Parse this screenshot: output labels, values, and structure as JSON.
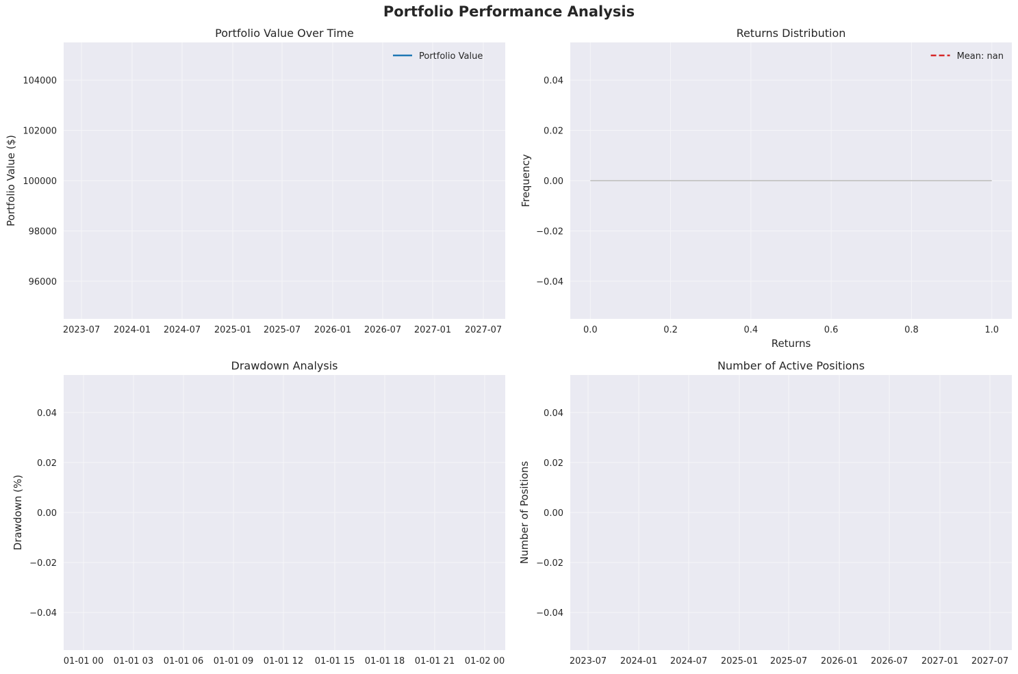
{
  "figure": {
    "title": "Portfolio Performance Analysis"
  },
  "chart_data": [
    {
      "id": "portfolio-value",
      "type": "line",
      "title": "Portfolio Value Over Time",
      "xlabel": "",
      "ylabel": "Portfolio Value ($)",
      "x_ticks": [
        "2023-07",
        "2024-01",
        "2024-07",
        "2025-01",
        "2025-07",
        "2026-01",
        "2026-07",
        "2027-01",
        "2027-07"
      ],
      "y_ticks": [
        "96000",
        "98000",
        "100000",
        "102000",
        "104000"
      ],
      "y_tick_values": [
        96000,
        98000,
        100000,
        102000,
        104000
      ],
      "ylim": [
        94500,
        105500
      ],
      "series": [
        {
          "name": "Portfolio Value",
          "x": [],
          "y": [],
          "color": "#1f77b4"
        }
      ],
      "legend": {
        "entries": [
          {
            "label": "Portfolio Value",
            "style": "solid",
            "color": "#1f77b4"
          }
        ],
        "position": "upper-right"
      },
      "grid": true
    },
    {
      "id": "returns-distribution",
      "type": "bar",
      "title": "Returns Distribution",
      "xlabel": "Returns",
      "ylabel": "Frequency",
      "x_ticks": [
        "0.0",
        "0.2",
        "0.4",
        "0.6",
        "0.8",
        "1.0"
      ],
      "x_tick_values": [
        0.0,
        0.2,
        0.4,
        0.6,
        0.8,
        1.0
      ],
      "y_ticks": [
        "0.04",
        "0.02",
        "0.00",
        "−0.02",
        "−0.04"
      ],
      "y_tick_values": [
        0.04,
        0.02,
        0.0,
        -0.02,
        -0.04
      ],
      "xlim": [
        -0.05,
        1.05
      ],
      "ylim": [
        -0.055,
        0.055
      ],
      "histogram": {
        "range": [
          0.0,
          1.0
        ],
        "value": 0.0,
        "color": "#c8c8c8"
      },
      "legend": {
        "entries": [
          {
            "label": "Mean: nan",
            "style": "dashed",
            "color": "#d62728"
          }
        ],
        "position": "upper-right"
      },
      "grid": true
    },
    {
      "id": "drawdown",
      "type": "area",
      "title": "Drawdown Analysis",
      "xlabel": "",
      "ylabel": "Drawdown (%)",
      "x_ticks": [
        "01-01 00",
        "01-01 03",
        "01-01 06",
        "01-01 09",
        "01-01 12",
        "01-01 15",
        "01-01 18",
        "01-01 21",
        "01-02 00"
      ],
      "y_ticks": [
        "0.04",
        "0.02",
        "0.00",
        "−0.02",
        "−0.04"
      ],
      "y_tick_values": [
        0.04,
        0.02,
        0.0,
        -0.02,
        -0.04
      ],
      "ylim": [
        -0.055,
        0.055
      ],
      "series": [],
      "grid": true
    },
    {
      "id": "active-positions",
      "type": "line",
      "title": "Number of Active Positions",
      "xlabel": "",
      "ylabel": "Number of Positions",
      "x_ticks": [
        "2023-07",
        "2024-01",
        "2024-07",
        "2025-01",
        "2025-07",
        "2026-01",
        "2026-07",
        "2027-01",
        "2027-07"
      ],
      "y_ticks": [
        "0.04",
        "0.02",
        "0.00",
        "−0.02",
        "−0.04"
      ],
      "y_tick_values": [
        0.04,
        0.02,
        0.0,
        -0.02,
        -0.04
      ],
      "ylim": [
        -0.055,
        0.055
      ],
      "series": [],
      "grid": true
    }
  ],
  "colors": {
    "axes_background": "#eaeaf2",
    "grid": "#f5f5f8",
    "portfolio_line": "#1f77b4",
    "mean_line": "#d62728",
    "histogram": "#c8c8c8"
  }
}
